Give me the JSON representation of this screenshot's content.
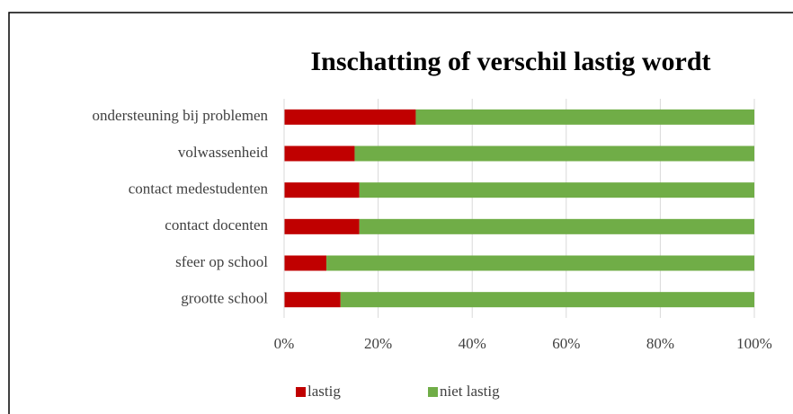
{
  "chart_data": {
    "type": "stacked-bar-horizontal",
    "title": "Inschatting of verschil lastig wordt",
    "categories": [
      "ondersteuning bij problemen",
      "volwassenheid",
      "contact medestudenten",
      "contact docenten",
      "sfeer op school",
      "grootte school"
    ],
    "series": [
      {
        "name": "lastig",
        "color": "#c00000",
        "values": [
          28,
          15,
          16,
          16,
          9,
          12
        ]
      },
      {
        "name": "niet lastig",
        "color": "#70ad47",
        "values": [
          72,
          85,
          84,
          84,
          91,
          88
        ]
      }
    ],
    "xlim": [
      0,
      100
    ],
    "xticks": [
      {
        "value": 0,
        "label": "0%"
      },
      {
        "value": 20,
        "label": "20%"
      },
      {
        "value": 40,
        "label": "40%"
      },
      {
        "value": 60,
        "label": "60%"
      },
      {
        "value": 80,
        "label": "80%"
      },
      {
        "value": 100,
        "label": "100%"
      }
    ],
    "grid": true,
    "legend": "bottom"
  }
}
